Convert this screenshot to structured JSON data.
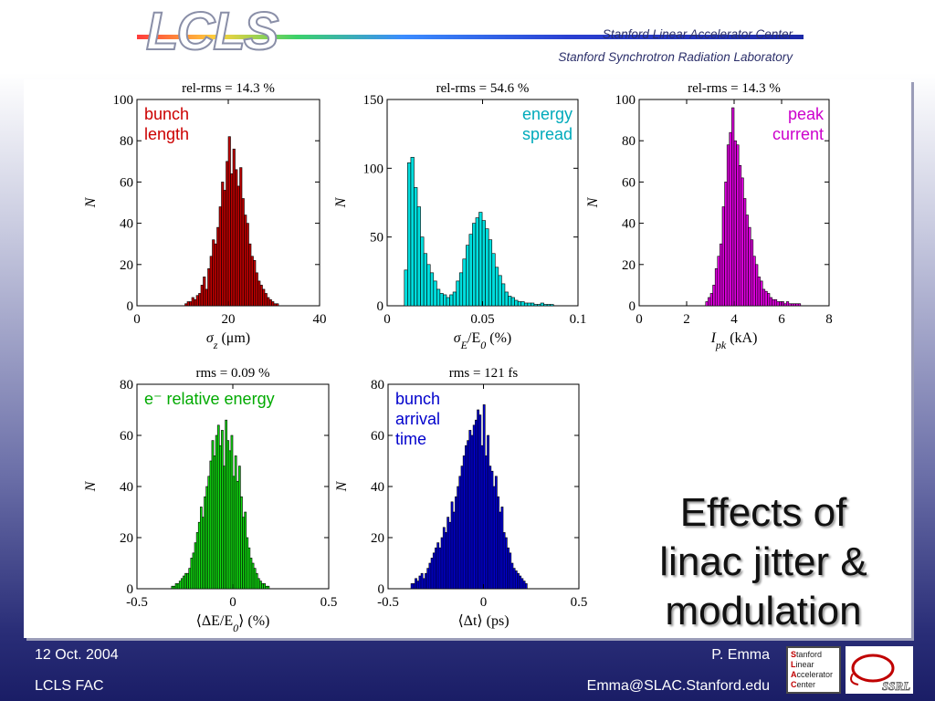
{
  "header": {
    "logo": "LCLS",
    "institution1": "Stanford Linear Accelerator Center",
    "institution2": "Stanford Synchrotron Radiation Laboratory"
  },
  "slide_title": [
    "Effects of",
    "linac jitter &",
    "modulation"
  ],
  "footer": {
    "date": "12 Oct. 2004",
    "event": "LCLS FAC",
    "author": "P. Emma",
    "email": "Emma@SLAC.Stanford.edu",
    "slac_logo_lines": [
      "Stanford",
      "Linear",
      "Accelerator",
      "Center"
    ],
    "ssrl_logo": "SSRL"
  },
  "chart_data": [
    {
      "type": "bar",
      "title": "rel-rms = 14.3 %",
      "label": [
        "bunch",
        "length"
      ],
      "label_color": "#cc0000",
      "label_align": "left",
      "color": "#c00000",
      "xlabel": [
        "σ",
        "z",
        " (μm)"
      ],
      "ylabel": "N",
      "xlim": [
        0,
        40
      ],
      "ylim": [
        0,
        100
      ],
      "xticks": [
        "0",
        "20",
        "40"
      ],
      "yticks": [
        "0",
        "20",
        "40",
        "60",
        "80",
        "100"
      ],
      "x_start": 10.5,
      "bin_width": 0.5,
      "values": [
        1,
        2,
        2,
        4,
        3,
        5,
        6,
        10,
        14,
        8,
        18,
        24,
        32,
        30,
        38,
        48,
        60,
        56,
        70,
        82,
        64,
        76,
        66,
        58,
        67,
        52,
        44,
        40,
        30,
        24,
        22,
        16,
        12,
        10,
        8,
        6,
        4,
        3,
        2,
        1,
        1
      ]
    },
    {
      "type": "bar",
      "title": "rel-rms = 54.6 %",
      "label": [
        "energy",
        "spread"
      ],
      "label_color": "#00aabb",
      "label_align": "right",
      "color": "#00dede",
      "xlabel": [
        "σ",
        "E",
        "/E",
        "0",
        " (%)"
      ],
      "ylabel": "N",
      "xlim": [
        0,
        0.1
      ],
      "ylim": [
        0,
        150
      ],
      "xticks": [
        "0",
        "0.05",
        "0.1"
      ],
      "yticks": [
        "0",
        "50",
        "100",
        "150"
      ],
      "x_start": 0.009,
      "bin_width": 0.0017,
      "values": [
        26,
        104,
        108,
        86,
        72,
        50,
        38,
        30,
        24,
        18,
        12,
        9,
        8,
        6,
        8,
        10,
        18,
        24,
        34,
        44,
        52,
        60,
        64,
        68,
        62,
        56,
        48,
        38,
        28,
        22,
        16,
        10,
        7,
        6,
        4,
        3,
        3,
        2,
        2,
        2,
        1,
        1,
        2,
        1,
        1,
        1
      ]
    },
    {
      "type": "bar",
      "title": "rel-rms = 14.3 %",
      "label": [
        "peak",
        "current"
      ],
      "label_color": "#cc00cc",
      "label_align": "right",
      "color": "#dd00dd",
      "xlabel": [
        "I",
        "pk",
        " (kA)"
      ],
      "ylabel": "N",
      "xlim": [
        0,
        8
      ],
      "ylim": [
        0,
        100
      ],
      "xticks": [
        "0",
        "2",
        "4",
        "6",
        "8"
      ],
      "yticks": [
        "0",
        "20",
        "40",
        "60",
        "80",
        "100"
      ],
      "x_start": 2.8,
      "bin_width": 0.1,
      "values": [
        2,
        4,
        6,
        10,
        18,
        24,
        30,
        48,
        60,
        78,
        84,
        96,
        80,
        78,
        68,
        62,
        52,
        44,
        38,
        32,
        24,
        20,
        14,
        12,
        8,
        7,
        6,
        4,
        3,
        3,
        2,
        2,
        2,
        1,
        2,
        1,
        1,
        1,
        1,
        1
      ]
    },
    {
      "type": "bar",
      "title": "rms = 0.09 %",
      "label": [
        "e⁻ relative energy"
      ],
      "label_color": "#00aa00",
      "label_align": "left",
      "color": "#11dd11",
      "xlabel": [
        "⟨ΔE/E",
        "0",
        "⟩ (%)"
      ],
      "ylabel": "N",
      "xlim": [
        -0.5,
        0.5
      ],
      "ylim": [
        0,
        80
      ],
      "xticks": [
        "-0.5",
        "0",
        "0.5"
      ],
      "yticks": [
        "0",
        "20",
        "40",
        "60",
        "80"
      ],
      "x_start": -0.32,
      "bin_width": 0.01,
      "values": [
        1,
        1,
        2,
        2,
        3,
        4,
        5,
        6,
        6,
        8,
        12,
        14,
        18,
        22,
        26,
        32,
        28,
        36,
        40,
        44,
        50,
        58,
        52,
        60,
        64,
        56,
        62,
        48,
        66,
        58,
        54,
        60,
        44,
        52,
        42,
        48,
        36,
        28,
        30,
        20,
        16,
        12,
        10,
        8,
        6,
        4,
        3,
        2,
        2,
        1,
        1
      ]
    },
    {
      "type": "bar",
      "title": "rms = 121 fs",
      "label": [
        "bunch",
        "arrival",
        "time"
      ],
      "label_color": "#0000cc",
      "label_align": "left",
      "color": "#0000dd",
      "xlabel": [
        "⟨Δt⟩ (ps)"
      ],
      "ylabel": "N",
      "xlim": [
        -0.5,
        0.5
      ],
      "ylim": [
        0,
        80
      ],
      "xticks": [
        "-0.5",
        "0",
        "0.5"
      ],
      "yticks": [
        "0",
        "20",
        "40",
        "60",
        "80"
      ],
      "x_start": -0.38,
      "bin_width": 0.0105,
      "values": [
        2,
        2,
        4,
        3,
        5,
        6,
        4,
        6,
        8,
        10,
        12,
        14,
        16,
        18,
        16,
        20,
        24,
        22,
        28,
        26,
        34,
        30,
        36,
        40,
        44,
        48,
        52,
        56,
        58,
        62,
        60,
        64,
        66,
        70,
        68,
        56,
        72,
        52,
        60,
        48,
        46,
        40,
        44,
        36,
        30,
        32,
        22,
        20,
        16,
        14,
        10,
        8,
        7,
        6,
        5,
        4,
        3,
        2
      ]
    }
  ]
}
